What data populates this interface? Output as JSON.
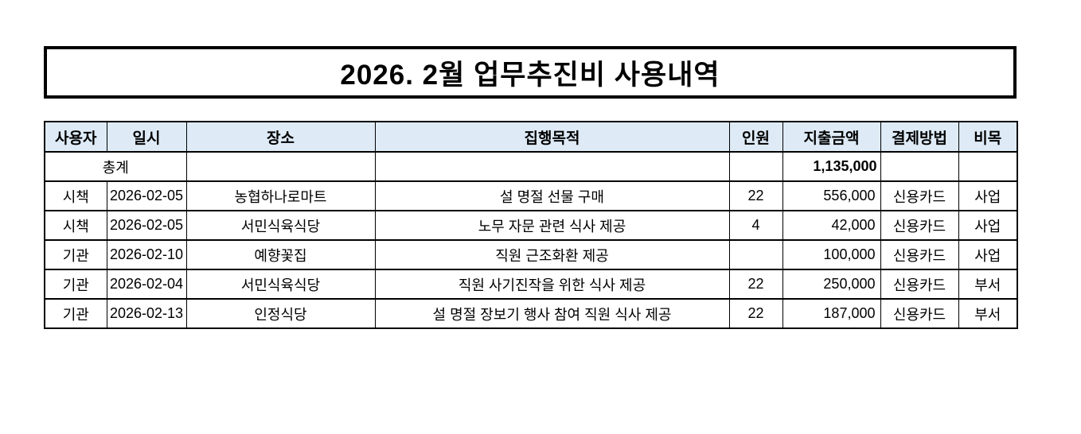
{
  "title": {
    "text": "2026. 2월 업무추진비 사용내역"
  },
  "table": {
    "header_fill": "#DEEBF7",
    "border_color": "#000000",
    "columns": [
      "사용자",
      "일시",
      "장소",
      "집행목적",
      "인원",
      "지출금액",
      "결제방법",
      "비목"
    ],
    "column_keys": [
      "user",
      "date",
      "place",
      "purpose",
      "people",
      "amount",
      "payment",
      "category"
    ],
    "total_row": {
      "label": "총계",
      "amount": "1,135,000"
    },
    "rows": [
      {
        "user": "시책",
        "date": "2026-02-05",
        "place": "농협하나로마트",
        "purpose": "설 명절 선물 구매",
        "people": "22",
        "amount": "556,000",
        "payment": "신용카드",
        "category": "사업"
      },
      {
        "user": "시책",
        "date": "2026-02-05",
        "place": "서민식육식당",
        "purpose": "노무 자문 관련 식사 제공",
        "people": "4",
        "amount": "42,000",
        "payment": "신용카드",
        "category": "사업"
      },
      {
        "user": "기관",
        "date": "2026-02-10",
        "place": "예향꽃집",
        "purpose": "직원 근조화환 제공",
        "people": "",
        "amount": "100,000",
        "payment": "신용카드",
        "category": "사업"
      },
      {
        "user": "기관",
        "date": "2026-02-04",
        "place": "서민식육식당",
        "purpose": "직원 사기진작을 위한 식사 제공",
        "people": "22",
        "amount": "250,000",
        "payment": "신용카드",
        "category": "부서"
      },
      {
        "user": "기관",
        "date": "2026-02-13",
        "place": "인정식당",
        "purpose": "설 명절 장보기 행사 참여 직원 식사 제공",
        "people": "22",
        "amount": "187,000",
        "payment": "신용카드",
        "category": "부서"
      }
    ]
  }
}
